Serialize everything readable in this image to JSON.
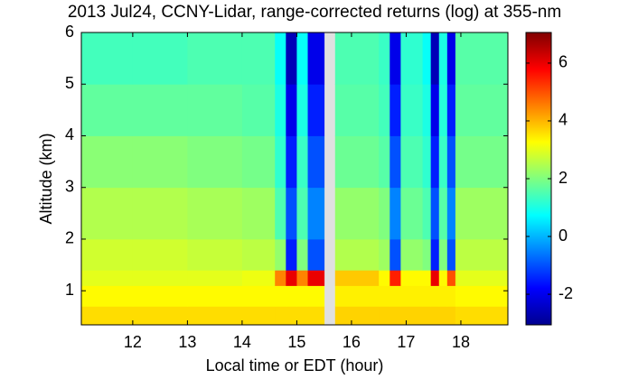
{
  "chart_data": {
    "type": "heatmap",
    "title": "2013 Jul24, CCNY-Lidar, range-corrected returns (log) at 355-nm",
    "x_label": "Local time or EDT (hour)",
    "y_label": "Altitude (km)",
    "colormap": "jet",
    "x": [
      11.06,
      12,
      13,
      14,
      14.6,
      14.8,
      15.0,
      15.2,
      15.5,
      15.7,
      16.5,
      16.7,
      16.9,
      17.3,
      17.45,
      17.6,
      17.75,
      17.9,
      18.86
    ],
    "y": [
      0.34,
      0.7,
      1.1,
      1.4,
      2,
      3,
      4,
      5,
      6
    ],
    "z": [
      [
        3.6,
        3.6,
        3.6,
        3.6,
        3.6,
        3.6,
        3.6,
        3.6,
        null,
        3.7,
        3.7,
        3.7,
        3.7,
        3.7,
        3.7,
        3.7,
        3.7,
        3.6
      ],
      [
        3.3,
        3.3,
        3.3,
        3.3,
        3.3,
        3.3,
        3.3,
        3.3,
        null,
        3.4,
        3.4,
        3.4,
        3.4,
        3.4,
        3.4,
        3.4,
        3.4,
        3.3
      ],
      [
        3.0,
        3.0,
        3.0,
        3.1,
        4.5,
        6.0,
        4.5,
        6.0,
        null,
        3.8,
        3.3,
        5.5,
        3.3,
        3.3,
        6.0,
        3.3,
        5.0,
        3.0
      ],
      [
        2.8,
        2.8,
        2.7,
        2.6,
        2.2,
        -1.5,
        2.0,
        -1.0,
        null,
        2.5,
        2.3,
        -1.0,
        2.2,
        2.0,
        -1.5,
        2.0,
        -1.0,
        2.6
      ],
      [
        2.5,
        2.5,
        2.4,
        2.3,
        1.5,
        -1.0,
        1.5,
        -0.5,
        null,
        2.2,
        2.0,
        -0.5,
        1.8,
        1.5,
        -1.0,
        1.6,
        -0.5,
        2.3
      ],
      [
        2.1,
        2.1,
        2.0,
        1.9,
        1.2,
        -1.5,
        1.3,
        -1.0,
        null,
        1.8,
        1.6,
        -1.0,
        1.5,
        1.2,
        -1.5,
        1.3,
        -1.0,
        1.9
      ],
      [
        1.7,
        1.7,
        1.7,
        1.6,
        1.0,
        -2.0,
        1.0,
        -1.5,
        null,
        1.6,
        1.4,
        -1.5,
        1.3,
        1.0,
        -2.0,
        1.1,
        -1.5,
        1.7
      ],
      [
        1.4,
        1.4,
        1.5,
        1.5,
        0.8,
        -2.5,
        0.8,
        -2.0,
        null,
        1.5,
        1.3,
        -2.0,
        1.2,
        0.8,
        -2.5,
        1.0,
        -2.0,
        1.6
      ]
    ],
    "xlim": [
      11.06,
      18.86
    ],
    "ylim": [
      0.34,
      6
    ],
    "xticks": [
      12,
      13,
      14,
      15,
      16,
      17,
      18
    ],
    "yticks": [
      1,
      2,
      3,
      4,
      5,
      6
    ],
    "clim": [
      -3.06,
      7.06
    ],
    "cticks": [
      -2,
      0,
      2,
      4,
      6
    ]
  }
}
